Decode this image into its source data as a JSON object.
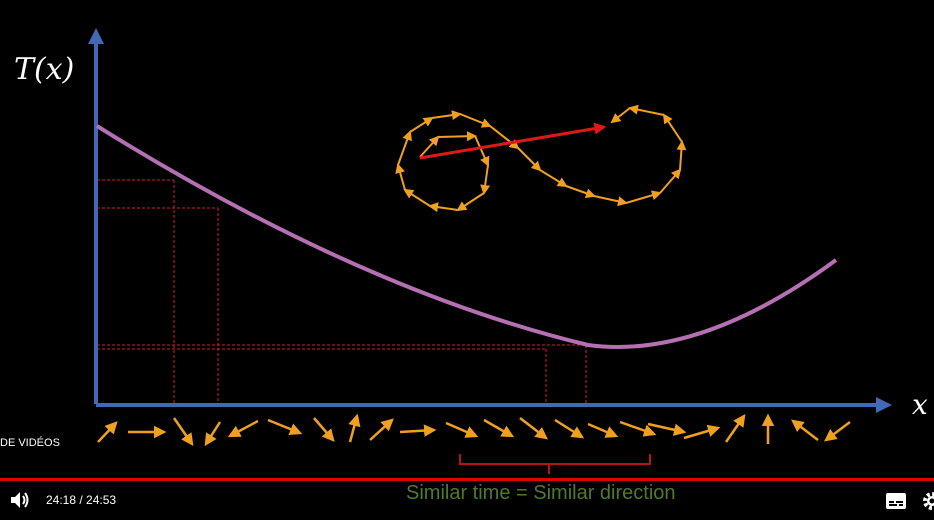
{
  "axes": {
    "y_label": "T(x)",
    "x_label": "x"
  },
  "caption": "Similar time = Similar direction",
  "side_label": "DE VIDÉOS",
  "player": {
    "current_time": "24:18",
    "duration": "24:53",
    "time_text": "24:18 / 24:53",
    "progress_fraction": 0.977
  },
  "colors": {
    "axis": "#4169b8",
    "curve": "#b56fb3",
    "arrows": "#f0a020",
    "path_arrow": "#e01818",
    "guides": "#d42020",
    "caption": "#4e7a2b",
    "progress": "#e00000"
  },
  "icons": [
    "volume-icon",
    "subtitles-icon",
    "settings-icon"
  ]
}
